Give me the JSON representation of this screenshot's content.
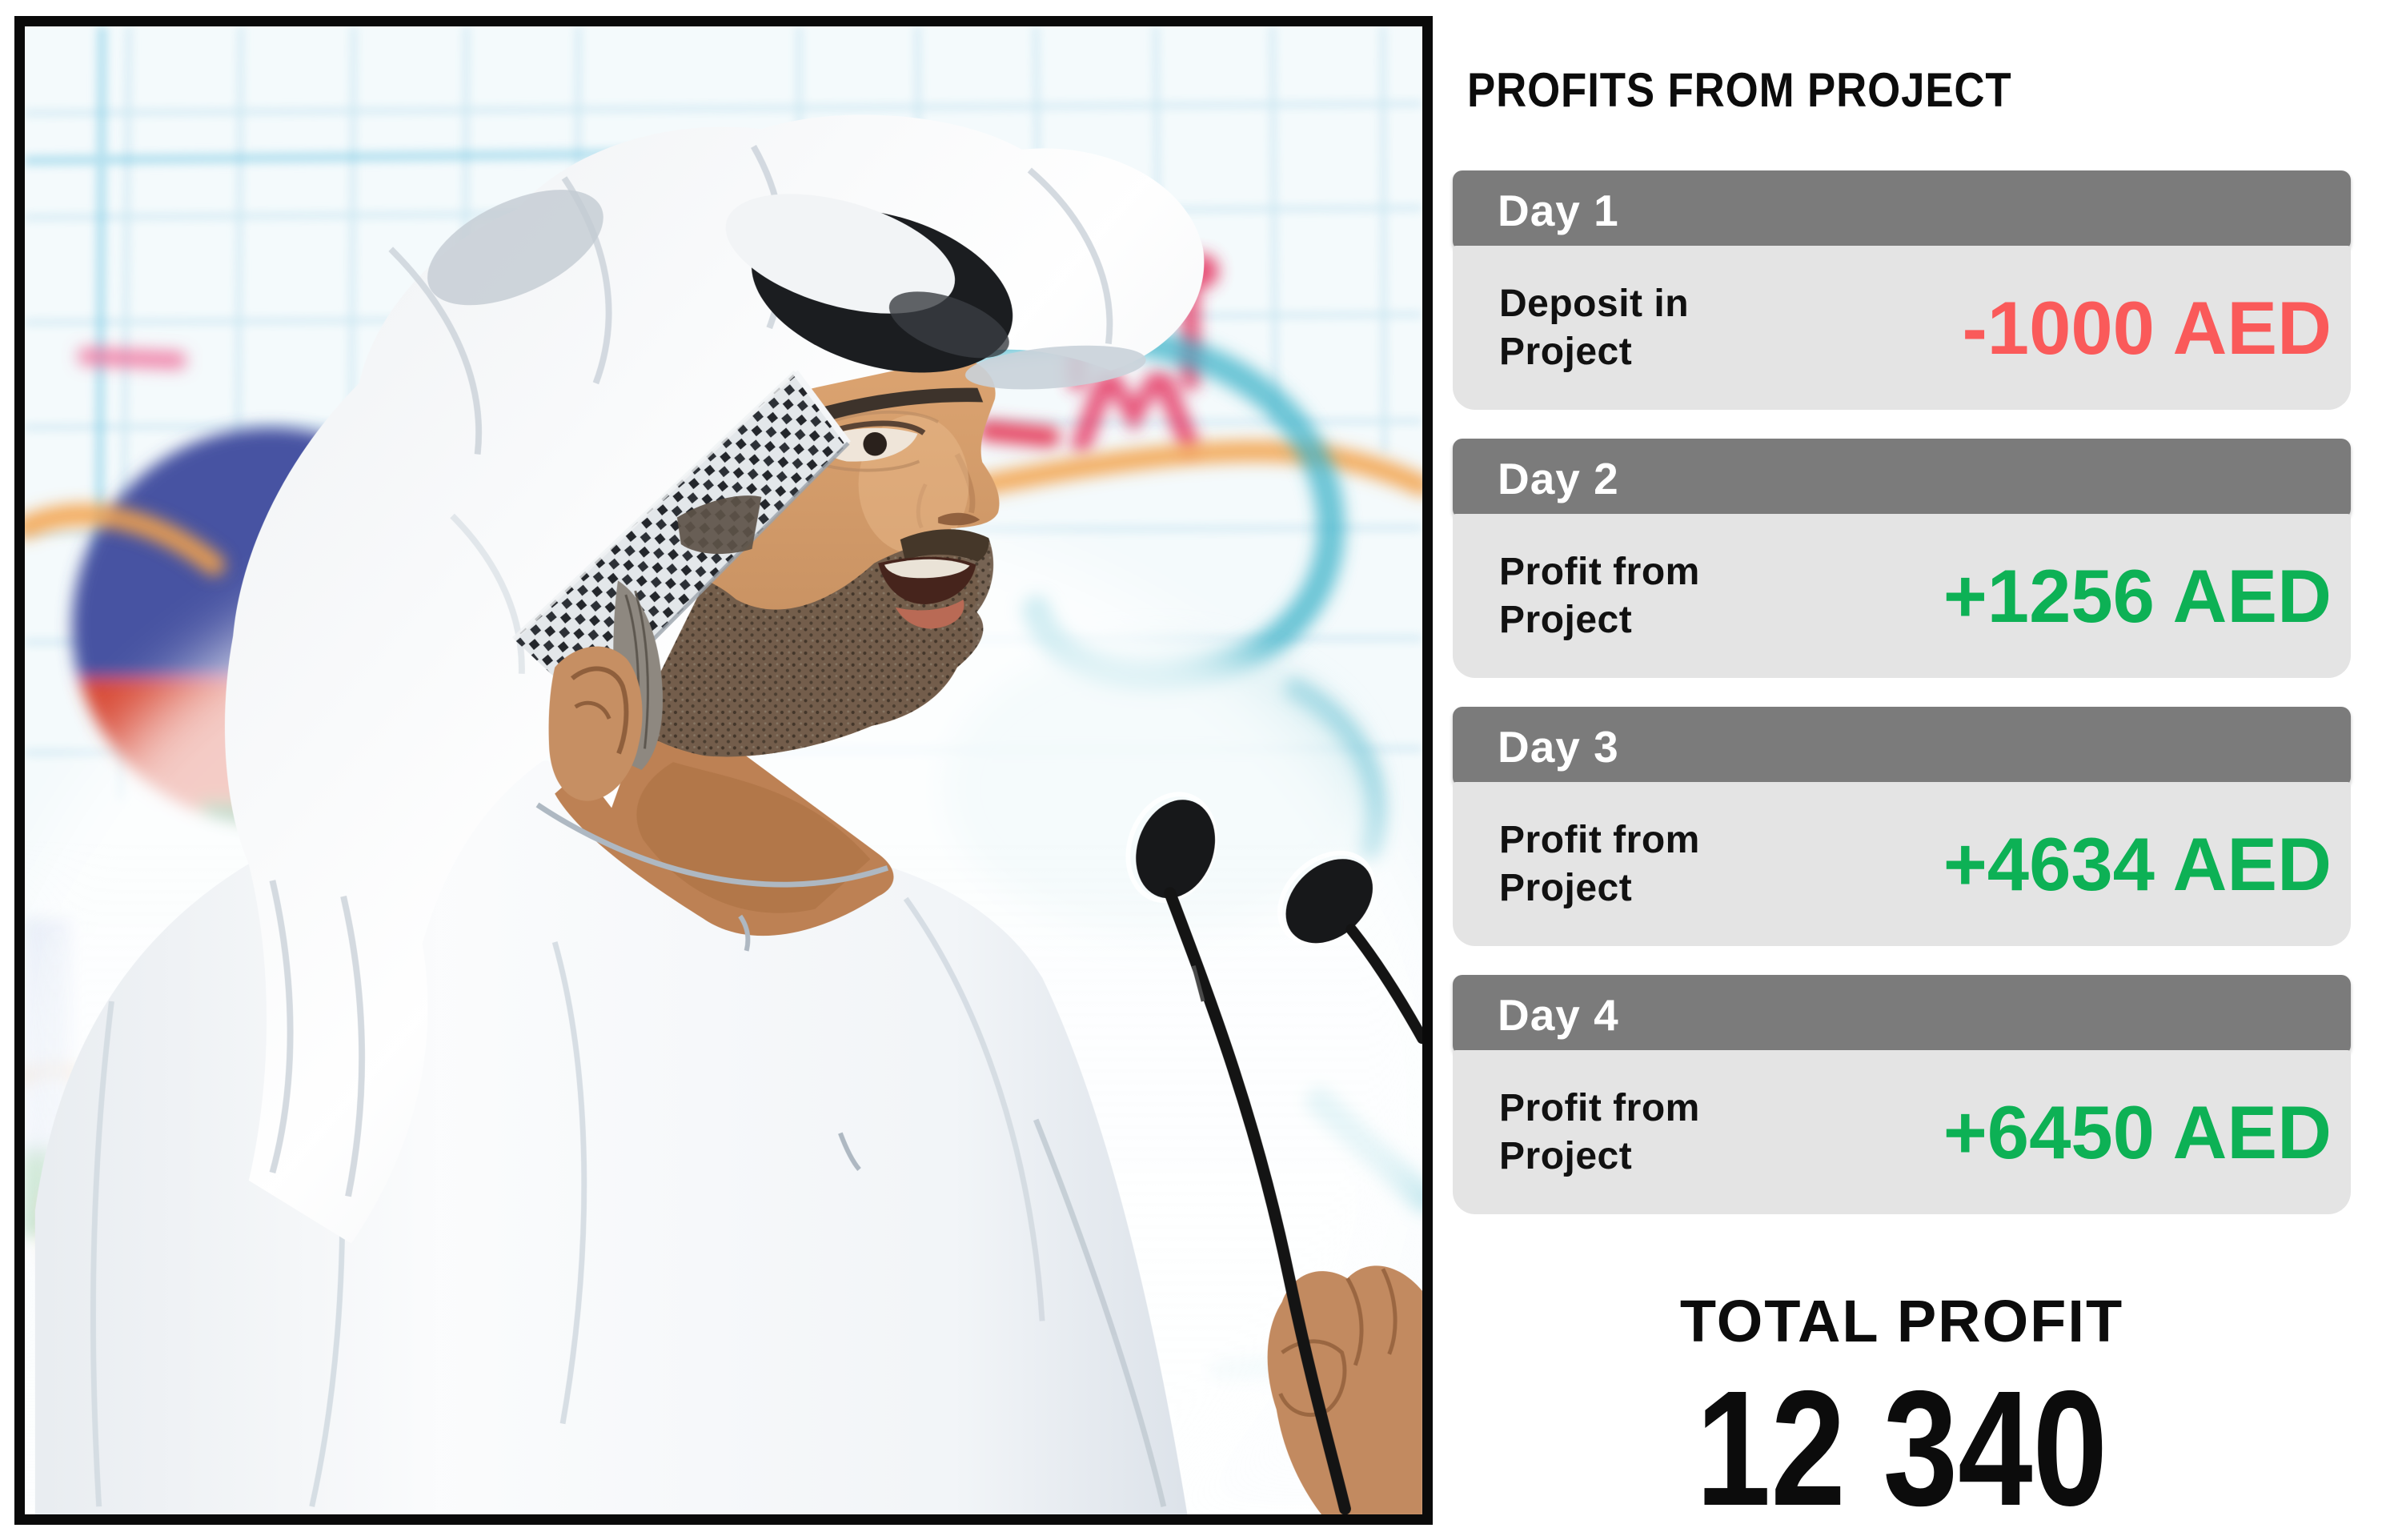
{
  "header": {
    "title": "PROFITS FROM PROJECT"
  },
  "cards": [
    {
      "day": "Day 1",
      "label_line1": "Deposit in",
      "label_line2": "Project",
      "amount": "-1000 AED",
      "direction": "negative"
    },
    {
      "day": "Day 2",
      "label_line1": "Profit from",
      "label_line2": "Project",
      "amount": "+1256 AED",
      "direction": "positive"
    },
    {
      "day": "Day 3",
      "label_line1": "Profit from",
      "label_line2": "Project",
      "amount": "+4634 AED",
      "direction": "positive"
    },
    {
      "day": "Day 4",
      "label_line1": "Profit from",
      "label_line2": "Project",
      "amount": "+6450 AED",
      "direction": "positive"
    }
  ],
  "total": {
    "label": "TOTAL PROFIT",
    "value": "12 340"
  },
  "photo": {
    "description": "Man in white Emirati kandura and ghutra headdress speaking in front of two microphones against a blurred light-blue grid backdrop"
  },
  "colors": {
    "negative": "#fa5a5a",
    "positive": "#0db155",
    "day_bar": "#7b7b7b",
    "card_body": "#e4e4e4",
    "frame": "#0a0a0a",
    "text": "#0c0c0c"
  }
}
